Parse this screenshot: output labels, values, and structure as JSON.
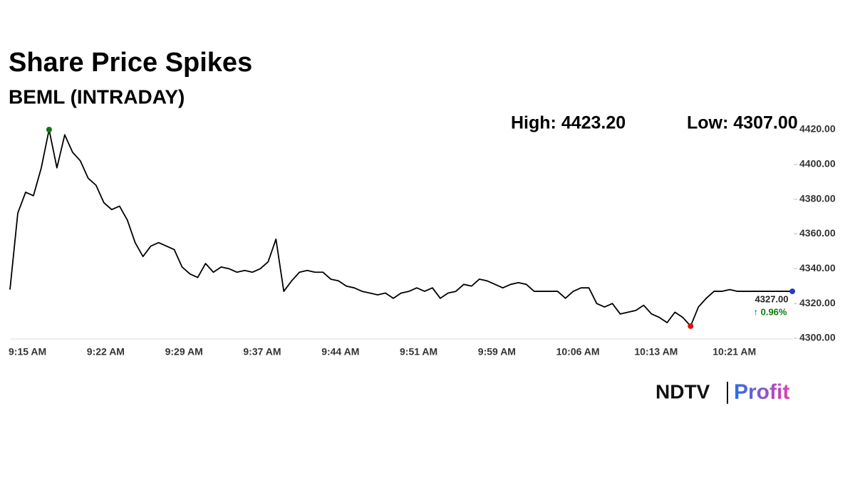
{
  "chart_data": {
    "type": "line",
    "title": "Share Price Spikes",
    "subtitle": "BEML (INTRADAY)",
    "annotations": [
      "High: 4423.20",
      "Low: 4307.00"
    ],
    "last_label": "4327.00",
    "change_label": "↑ 0.96%",
    "categories": [
      "9:15 AM",
      null,
      null,
      null,
      null,
      null,
      null,
      null,
      null,
      null,
      "9:22 AM",
      null,
      null,
      null,
      null,
      null,
      null,
      null,
      null,
      null,
      "9:29 AM",
      null,
      null,
      null,
      null,
      null,
      null,
      null,
      null,
      null,
      "9:37 AM",
      null,
      null,
      null,
      null,
      null,
      null,
      null,
      null,
      null,
      "9:44 AM",
      null,
      null,
      null,
      null,
      null,
      null,
      null,
      null,
      null,
      "9:51 AM",
      null,
      null,
      null,
      null,
      null,
      null,
      null,
      null,
      null,
      "9:59 AM",
      null,
      null,
      null,
      null,
      null,
      null,
      null,
      null,
      null,
      "10:06 AM",
      null,
      null,
      null,
      null,
      null,
      null,
      null,
      null,
      null,
      "10:13 AM",
      null,
      null,
      null,
      null,
      null,
      null,
      null,
      null,
      null,
      "10:21 AM",
      null,
      null,
      null,
      null,
      null,
      null,
      null,
      null,
      null,
      null
    ],
    "values": [
      4328,
      4372,
      4384,
      4382,
      4398,
      4420,
      4398,
      4417,
      4407,
      4402,
      4392,
      4388,
      4378,
      4374,
      4376,
      4368,
      4355,
      4347,
      4353,
      4355,
      4353,
      4351,
      4341,
      4337,
      4335,
      4343,
      4338,
      4341,
      4340,
      4338,
      4339,
      4338,
      4340,
      4344,
      4357,
      4327,
      4333,
      4338,
      4339,
      4338,
      4338,
      4334,
      4333,
      4330,
      4329,
      4327,
      4326,
      4325,
      4326,
      4323,
      4326,
      4327,
      4329,
      4327,
      4329,
      4323,
      4326,
      4327,
      4331,
      4330,
      4334,
      4333,
      4331,
      4329,
      4331,
      4332,
      4331,
      4327,
      4327,
      4327,
      4327,
      4323,
      4327,
      4329,
      4329,
      4320,
      4318,
      4320,
      4314,
      4315,
      4316,
      4319,
      4314,
      4312,
      4309,
      4315,
      4312,
      4307,
      4318,
      4323,
      4327,
      4327,
      4328,
      4327,
      4327,
      4327,
      4327,
      4327,
      4327,
      4327,
      4327
    ],
    "color": "#000000",
    "high_color": "#0a7a0a",
    "low_color": "#e01010",
    "last_color": "#1f3fbf",
    "change_color": "#0a7a0a",
    "ylim": [
      4300,
      4420
    ],
    "yticks": [
      {
        "value": 4300,
        "label": "4300.00"
      },
      {
        "value": 4320,
        "label": "4320.00"
      },
      {
        "value": 4340,
        "label": "4340.00"
      },
      {
        "value": 4360,
        "label": "4360.00"
      },
      {
        "value": 4380,
        "label": "4380.00"
      },
      {
        "value": 4400,
        "label": "4400.00"
      },
      {
        "value": 4420,
        "label": "4420.00"
      }
    ],
    "grid": false,
    "brand": {
      "name": "NDTV",
      "product": "Profit"
    }
  }
}
